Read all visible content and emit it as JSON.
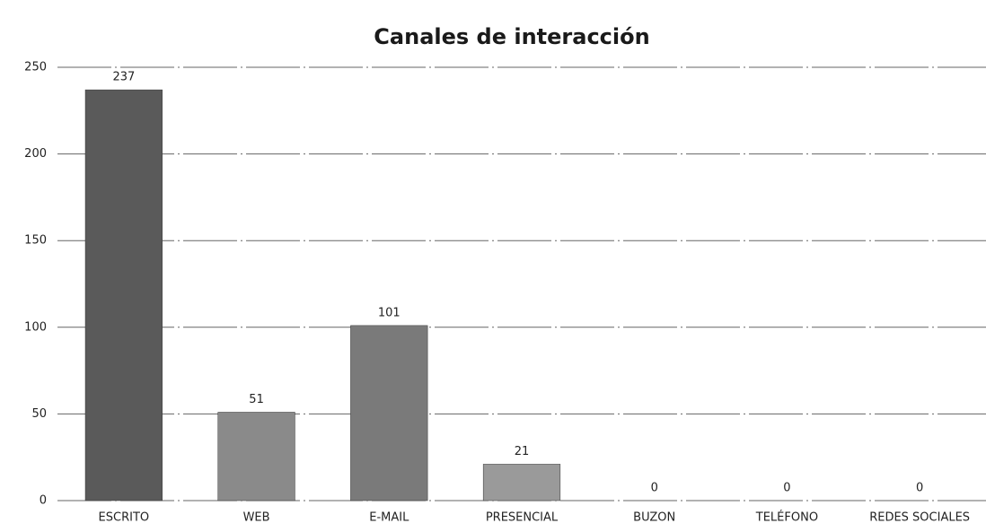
{
  "chart_data": {
    "type": "bar",
    "title": "Canales de interacción",
    "categories": [
      "ESCRITO",
      "WEB",
      "E-MAIL",
      "PRESENCIAL",
      "BUZON",
      "TELÉFONO",
      "REDES SOCIALES"
    ],
    "values": [
      237,
      51,
      101,
      21,
      0,
      0,
      0
    ],
    "colors": [
      "#5a5a5a",
      "#8a8a8a",
      "#7a7a7a",
      "#9a9a9a",
      "#9a9a9a",
      "#9a9a9a",
      "#9a9a9a"
    ],
    "ylim": [
      0,
      250
    ],
    "yticks": [
      0,
      50,
      100,
      150,
      200,
      250
    ],
    "grid": true
  }
}
